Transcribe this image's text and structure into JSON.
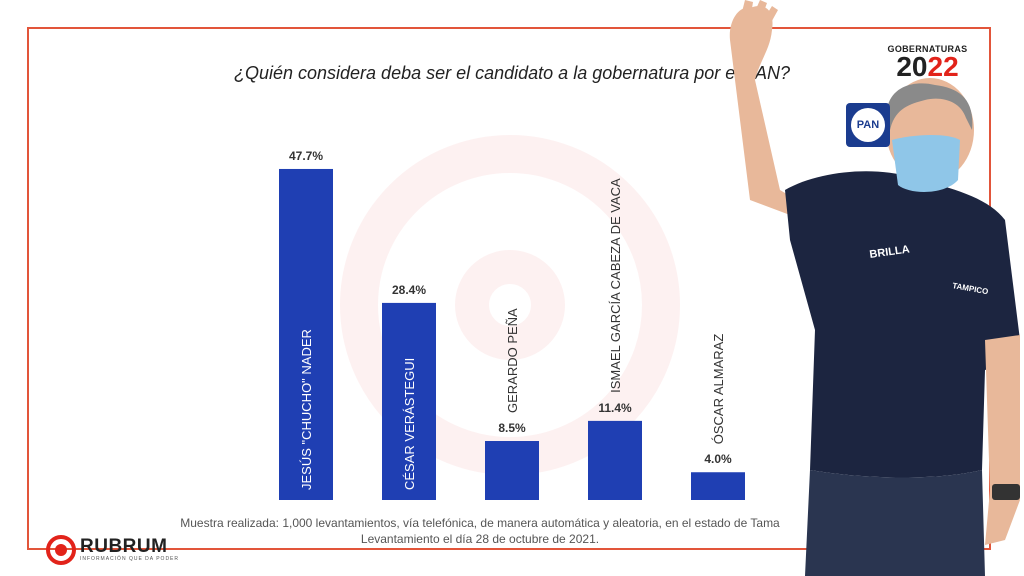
{
  "chart_data": {
    "type": "bar",
    "title": "¿Quién considera deba ser el candidato a la  gobernatura por el PAN?",
    "categories": [
      "JESÚS \"CHUCHO\" NADER",
      "CÉSAR VERÁSTEGUI",
      "GERARDO PEÑA",
      "ISMAEL GARCÍA CABEZA DE VACA",
      "ÓSCAR ALMARAZ"
    ],
    "values": [
      47.7,
      28.4,
      8.5,
      11.4,
      4.0
    ],
    "value_labels": [
      "47.7%",
      "28.4%",
      "8.5%",
      "11.4%",
      "4.0%"
    ],
    "ylim": [
      0,
      50
    ],
    "bar_color": "#1f3fb3",
    "grid": false,
    "legend": "none"
  },
  "branding": {
    "event_title": "GOBERNATURAS",
    "event_year_prefix": "20",
    "event_year_suffix": "22",
    "party_logo_text": "PAN",
    "publisher_name": "RUBRUM",
    "publisher_tagline": "INFORMACIÓN QUE DA PODER",
    "accent_color": "#e2231a",
    "frame_color": "#e2553a",
    "party_color": "#1b3c8f"
  },
  "footer": {
    "line1": "Muestra realizada: 1,000 levantamientos, vía telefónica, de manera automática y aleatoria, en el estado de Tama",
    "line2": "Levantamiento el día 28 de octubre de 2021."
  },
  "photo": {
    "shirt_text_1": "BRILLA",
    "shirt_text_2": "TAMPICO"
  }
}
